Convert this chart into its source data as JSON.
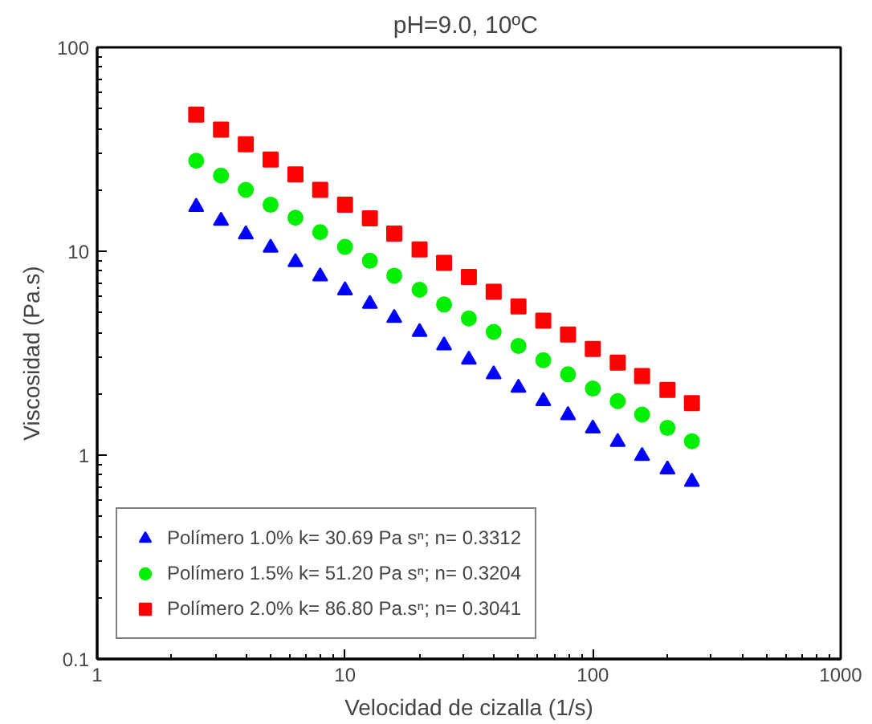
{
  "chart_data": {
    "type": "scatter",
    "title": "pH=9.0,  10ºC",
    "xlabel": "Velocidad de cizalla (1/s)",
    "ylabel": "Viscosidad (Pa.s)",
    "log": "xy",
    "xlim": [
      1,
      1000
    ],
    "ylim": [
      0.1,
      100
    ],
    "xticks": [
      1,
      10,
      100,
      1000
    ],
    "yticks": [
      0.1,
      1,
      10,
      100
    ],
    "grid": false,
    "legend": "bottom left",
    "x": [
      2.51,
      3.16,
      3.98,
      5.01,
      6.31,
      7.94,
      10,
      12.6,
      15.8,
      20,
      25.1,
      31.6,
      39.8,
      50.1,
      63.1,
      79.4,
      100,
      126,
      158,
      200,
      251
    ],
    "series": [
      {
        "name": "Polímero 1.0% k= 30.69 Pa sⁿ; n= 0.3312",
        "color": "#0000ff",
        "marker": "triangle",
        "values": [
          16.5,
          14.1,
          12.1,
          10.4,
          8.84,
          7.53,
          6.43,
          5.52,
          4.71,
          4.02,
          3.45,
          2.94,
          2.49,
          2.14,
          1.84,
          1.57,
          1.35,
          1.16,
          0.99,
          0.85,
          0.74
        ]
      },
      {
        "name": "Polímero 1.5% k= 51.20 Pa sⁿ; n= 0.3204",
        "color": "#00ee00",
        "marker": "circle",
        "values": [
          27.8,
          23.5,
          20.0,
          16.9,
          14.6,
          12.4,
          10.5,
          8.98,
          7.59,
          6.47,
          5.48,
          4.68,
          4.02,
          3.43,
          2.92,
          2.49,
          2.12,
          1.84,
          1.58,
          1.36,
          1.17
        ]
      },
      {
        "name": "Polímero 2.0% k= 86.80 Pa.sⁿ; n= 0.3041",
        "color": "#ff0000",
        "marker": "square",
        "values": [
          46.8,
          39.5,
          33.5,
          28.2,
          23.8,
          20.0,
          16.9,
          14.5,
          12.2,
          10.2,
          8.77,
          7.48,
          6.33,
          5.36,
          4.57,
          3.9,
          3.32,
          2.84,
          2.44,
          2.09,
          1.8
        ]
      }
    ]
  }
}
